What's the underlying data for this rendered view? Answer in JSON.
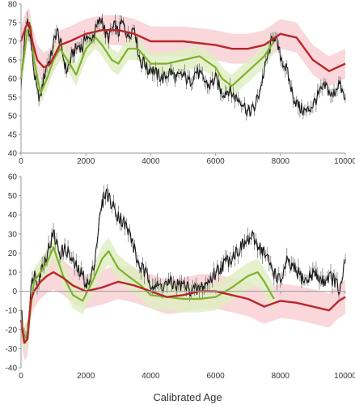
{
  "xlabel": "Calibrated Age",
  "colors": {
    "black": "#1a1a1a",
    "red": "#b8262a",
    "green": "#7fb02e",
    "red_band": "#f7c9cf",
    "green_band": "#dfeec0",
    "axis": "#9a9a9a"
  },
  "chart_data": [
    {
      "type": "line",
      "title": "",
      "xlabel": "",
      "ylabel": "",
      "xlim": [
        0,
        10000
      ],
      "ylim": [
        40,
        80
      ],
      "xticks": [
        "0",
        "2000",
        "4000",
        "6000",
        "8000",
        "10000"
      ],
      "yticks": [
        "40",
        "45",
        "50",
        "55",
        "60",
        "65",
        "70",
        "75",
        "80"
      ],
      "series": [
        {
          "key": "black",
          "x": [
            0,
            100,
            200,
            300,
            400,
            500,
            600,
            700,
            800,
            900,
            1000,
            1100,
            1200,
            1300,
            1400,
            1500,
            1600,
            1700,
            1800,
            1900,
            2000,
            2100,
            2200,
            2300,
            2400,
            2500,
            2600,
            2700,
            2800,
            2900,
            3000,
            3100,
            3200,
            3300,
            3400,
            3500,
            3600,
            3700,
            3800,
            3900,
            4000,
            4200,
            4400,
            4600,
            4800,
            5000,
            5200,
            5400,
            5600,
            5800,
            6000,
            6200,
            6400,
            6600,
            6800,
            7000,
            7200,
            7400,
            7600,
            7800,
            8000,
            8200,
            8400,
            8600,
            8800,
            9000,
            9200,
            9400,
            9600,
            9800,
            10000
          ],
          "y": [
            58,
            70,
            76,
            70,
            62,
            56,
            55,
            60,
            64,
            65,
            69,
            73,
            70,
            66,
            62,
            64,
            67,
            68,
            69,
            68,
            72,
            70,
            71,
            73,
            75,
            76,
            72,
            71,
            73,
            74,
            72,
            75,
            74,
            71,
            73,
            74,
            68,
            64,
            65,
            62,
            63,
            61,
            60,
            62,
            60,
            61,
            59,
            62,
            60,
            58,
            60,
            56,
            57,
            55,
            54,
            51,
            52,
            58,
            66,
            72,
            66,
            62,
            55,
            52,
            51,
            53,
            56,
            58,
            55,
            59,
            54
          ]
        },
        {
          "key": "red",
          "x": [
            0,
            150,
            250,
            350,
            500,
            700,
            900,
            1200,
            1500,
            2000,
            2500,
            3000,
            3500,
            4000,
            5000,
            6000,
            6500,
            7000,
            7500,
            8000,
            8500,
            9000,
            9500,
            10000
          ],
          "y": [
            70,
            74,
            75,
            70,
            65,
            63,
            64,
            69,
            70,
            72,
            73,
            73,
            72,
            70,
            70,
            69,
            68,
            68,
            69,
            72,
            71,
            65,
            62,
            64
          ]
        },
        {
          "key": "green",
          "x": [
            0,
            200,
            300,
            400,
            600,
            800,
            1000,
            1200,
            1500,
            1700,
            2000,
            2300,
            2500,
            2800,
            3000,
            3300,
            3600,
            3800,
            4000,
            4500,
            5000,
            5500,
            6000,
            6200,
            6500,
            7000,
            7500,
            7800
          ],
          "y": [
            60,
            73,
            74,
            65,
            56,
            60,
            65,
            68,
            64,
            61,
            68,
            71,
            69,
            65,
            64,
            68,
            68,
            66,
            64,
            64,
            65,
            66,
            63,
            60,
            58,
            62,
            66,
            70
          ]
        }
      ]
    },
    {
      "type": "line",
      "title": "",
      "xlabel": "Calibrated Age",
      "ylabel": "",
      "xlim": [
        0,
        10000
      ],
      "ylim": [
        -40,
        60
      ],
      "xticks": [
        "0",
        "2000",
        "4000",
        "6000",
        "8000",
        "10000"
      ],
      "yticks": [
        "-40",
        "-30",
        "-20",
        "-10",
        "0",
        "10",
        "20",
        "30",
        "40",
        "50",
        "60"
      ],
      "series": [
        {
          "key": "black",
          "x": [
            0,
            100,
            200,
            300,
            400,
            500,
            700,
            900,
            1000,
            1200,
            1400,
            1600,
            1800,
            1900,
            2000,
            2100,
            2200,
            2300,
            2400,
            2500,
            2600,
            2700,
            2800,
            3000,
            3200,
            3400,
            3600,
            3800,
            4000,
            4200,
            4500,
            5000,
            5400,
            5800,
            6000,
            6300,
            6600,
            6900,
            7100,
            7300,
            7500,
            7800,
            8000,
            8200,
            8500,
            8800,
            9000,
            9300,
            9500,
            9700,
            9800,
            9900,
            10000
          ],
          "y": [
            -10,
            -25,
            -20,
            0,
            10,
            5,
            15,
            25,
            30,
            20,
            22,
            15,
            10,
            8,
            5,
            3,
            10,
            20,
            35,
            45,
            52,
            50,
            45,
            40,
            35,
            28,
            15,
            10,
            5,
            2,
            4,
            3,
            0,
            5,
            10,
            15,
            20,
            25,
            28,
            25,
            20,
            10,
            5,
            15,
            10,
            5,
            10,
            5,
            8,
            5,
            0,
            3,
            18
          ]
        },
        {
          "key": "red",
          "x": [
            0,
            100,
            200,
            300,
            400,
            600,
            800,
            1000,
            1300,
            1600,
            2000,
            2500,
            3000,
            3500,
            4000,
            4500,
            5000,
            5500,
            6000,
            6500,
            7000,
            7500,
            8000,
            8500,
            9000,
            9500,
            9800,
            10000
          ],
          "y": [
            -15,
            -27,
            -25,
            -5,
            0,
            5,
            8,
            10,
            7,
            3,
            0,
            2,
            5,
            3,
            0,
            -3,
            -2,
            0,
            0,
            -2,
            -4,
            -8,
            -5,
            -6,
            -8,
            -10,
            -5,
            -3
          ]
        },
        {
          "key": "green",
          "x": [
            0,
            100,
            200,
            400,
            600,
            800,
            1000,
            1300,
            1600,
            1900,
            2200,
            2500,
            2700,
            3000,
            3300,
            3700,
            4000,
            4500,
            5000,
            5500,
            6000,
            6500,
            7000,
            7300,
            7500,
            7800
          ],
          "y": [
            -15,
            -25,
            -22,
            5,
            10,
            15,
            23,
            8,
            -2,
            -5,
            5,
            17,
            21,
            12,
            8,
            3,
            -2,
            -3,
            -4,
            -4,
            -3,
            2,
            8,
            10,
            5,
            -4
          ]
        }
      ]
    }
  ]
}
